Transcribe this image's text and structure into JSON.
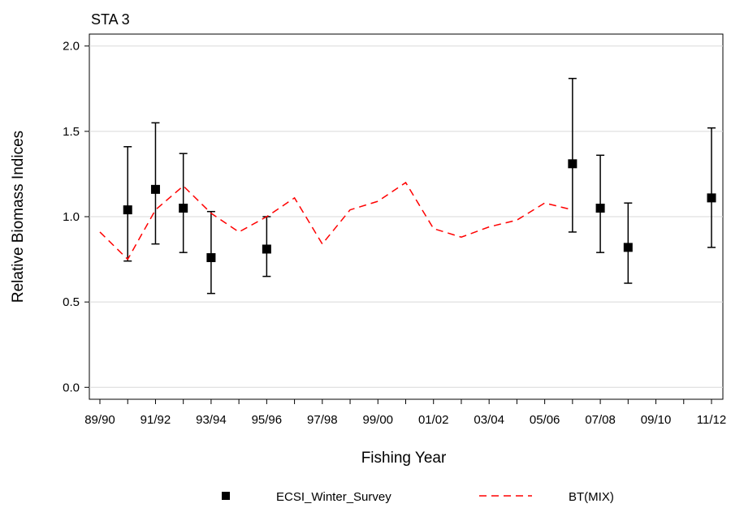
{
  "chart_data": {
    "type": "line",
    "title": "STA 3",
    "x_label": "Fishing Year",
    "y_label": "Relative Biomass Indices",
    "categories": [
      "89/90",
      null,
      "91/92",
      null,
      "93/94",
      null,
      "95/96",
      null,
      "97/98",
      null,
      "99/00",
      null,
      "01/02",
      null,
      "03/04",
      null,
      "05/06",
      null,
      "07/08",
      null,
      "09/10",
      null,
      "11/12"
    ],
    "ylim": [
      -0.07,
      2.07
    ],
    "yticks": [
      {
        "value": 0,
        "label": "0.0"
      },
      0.5,
      {
        "value": 1,
        "label": "1.0"
      },
      1.5,
      {
        "value": 2,
        "label": "2.0"
      }
    ],
    "grid": true,
    "legend": "bottom",
    "series": [
      {
        "name": "ECSI_Winter_Survey",
        "color": "#000000",
        "style": "markers-errorbars",
        "values": [
          null,
          1.04,
          1.16,
          1.05,
          0.76,
          null,
          0.81,
          null,
          null,
          null,
          null,
          null,
          null,
          null,
          null,
          null,
          null,
          1.31,
          1.05,
          0.82,
          null,
          null,
          1.11
        ],
        "lower": [
          null,
          0.74,
          0.84,
          0.79,
          0.55,
          null,
          0.65,
          null,
          null,
          null,
          null,
          null,
          null,
          null,
          null,
          null,
          null,
          0.91,
          0.79,
          0.61,
          null,
          null,
          0.82
        ],
        "upper": [
          null,
          1.41,
          1.55,
          1.37,
          1.03,
          null,
          1.0,
          null,
          null,
          null,
          null,
          null,
          null,
          null,
          null,
          null,
          null,
          1.81,
          1.36,
          1.08,
          null,
          null,
          1.52
        ]
      },
      {
        "name": "BT(MIX)",
        "color": "#ff0000",
        "style": "dashed",
        "values": [
          0.91,
          0.75,
          1.04,
          1.18,
          1.02,
          0.91,
          1.0,
          1.11,
          0.84,
          1.04,
          1.09,
          1.2,
          0.93,
          0.88,
          0.94,
          0.98,
          1.08,
          1.04,
          null,
          null,
          null,
          null,
          null
        ]
      }
    ]
  }
}
